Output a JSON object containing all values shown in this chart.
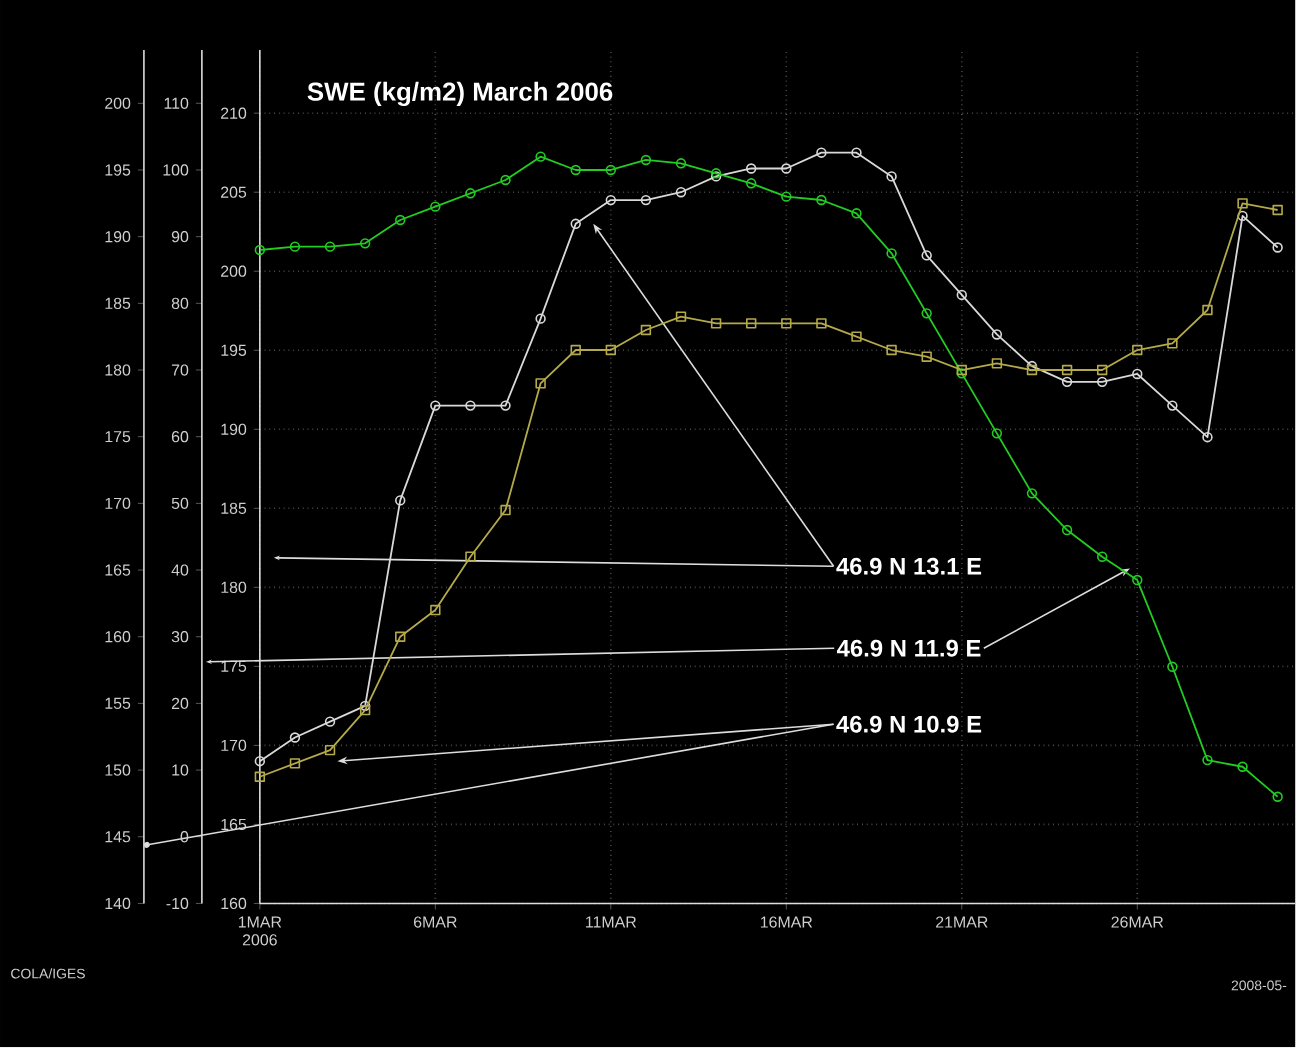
{
  "chart_data": {
    "type": "line",
    "title": "SWE (kg/m2) March 2006",
    "x": [
      "2006-03-01",
      "2006-03-02",
      "2006-03-03",
      "2006-03-04",
      "2006-03-05",
      "2006-03-06",
      "2006-03-07",
      "2006-03-08",
      "2006-03-09",
      "2006-03-10",
      "2006-03-11",
      "2006-03-12",
      "2006-03-13",
      "2006-03-14",
      "2006-03-15",
      "2006-03-16",
      "2006-03-17",
      "2006-03-18",
      "2006-03-19",
      "2006-03-20",
      "2006-03-21",
      "2006-03-22",
      "2006-03-23",
      "2006-03-24",
      "2006-03-25",
      "2006-03-26",
      "2006-03-27",
      "2006-03-28",
      "2006-03-29",
      "2006-03-30"
    ],
    "series": [
      {
        "color": "#d9d9d9",
        "marker": "circle",
        "values": [
          169,
          170.5,
          171.5,
          172.5,
          185.5,
          191.5,
          191.5,
          191.5,
          197,
          203,
          204.5,
          204.5,
          205,
          206,
          206.5,
          206.5,
          207.5,
          207.5,
          206,
          201,
          198.5,
          196,
          194,
          193,
          193,
          193.5,
          191.5,
          189.5,
          203.5,
          201.5
        ]
      },
      {
        "color": "#22cc22",
        "marker": "circle",
        "axis": "y2",
        "values": [
          88,
          88.5,
          88.5,
          89,
          92.5,
          94.5,
          96.5,
          98.5,
          102,
          100,
          100,
          101.5,
          101,
          99.5,
          98,
          96,
          95.5,
          93.5,
          87.5,
          78.5,
          69.5,
          60.5,
          51.5,
          46,
          42,
          38.5,
          25.5,
          11.5,
          10.5,
          6
        ]
      },
      {
        "color": "#b5aa4a",
        "marker": "square",
        "axis": "y3",
        "values": [
          149.5,
          150.5,
          151.5,
          154.5,
          160,
          162,
          166,
          169.5,
          179,
          181.5,
          181.5,
          183,
          184,
          183.5,
          183.5,
          183.5,
          183.5,
          182.5,
          181.5,
          181,
          180,
          180.5,
          180,
          180,
          180,
          181.5,
          182,
          184.5,
          192.5,
          192
        ]
      }
    ],
    "xlim": [
      "2006-03-01",
      "2006-03-30T12:00"
    ],
    "xticks": [
      {
        "value": "2006-03-01",
        "label": "1MAR 2006"
      },
      {
        "value": "2006-03-06",
        "label": "6MAR"
      },
      {
        "value": "2006-03-11",
        "label": "11MAR"
      },
      {
        "value": "2006-03-16",
        "label": "16MAR"
      },
      {
        "value": "2006-03-21",
        "label": "21MAR"
      },
      {
        "value": "2006-03-26",
        "label": "26MAR"
      }
    ],
    "ylim": [
      160,
      214
    ],
    "yticks": [
      160,
      165,
      170,
      175,
      180,
      185,
      190,
      195,
      200,
      205,
      210
    ],
    "y2lim": [
      -10,
      118
    ],
    "y2ticks": [
      -10,
      0,
      10,
      20,
      30,
      40,
      50,
      60,
      70,
      80,
      90,
      100,
      110
    ],
    "y3lim": [
      140,
      204
    ],
    "y3ticks": [
      140,
      145,
      150,
      155,
      160,
      165,
      170,
      175,
      180,
      185,
      190,
      195,
      200
    ],
    "grid": true,
    "annotations": [
      {
        "text": "46.9 N 13.1 E",
        "x": "2006-03-10T12:00",
        "y": 203
      },
      {
        "text": "46.9 N 11.9 E",
        "x": "2006-03-25T19:00",
        "y": 181.2
      },
      {
        "text": "46.9 N 10.9 E",
        "x": "2006-03-03T05:00",
        "y": 169
      },
      "COLA/IGES",
      "2008-05-"
    ]
  }
}
